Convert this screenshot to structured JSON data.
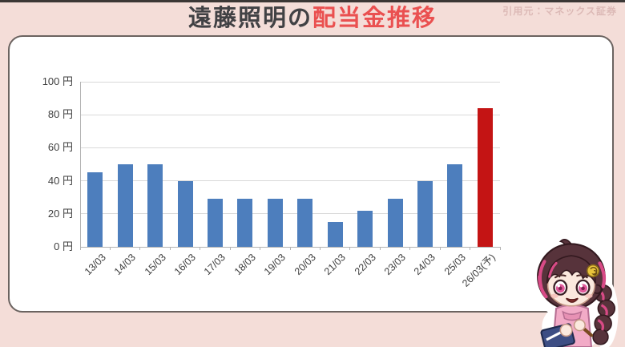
{
  "header": {
    "title_plain": "遠藤照明の",
    "title_accent": "配当金推移",
    "source": "引用元：マネックス証券"
  },
  "colors": {
    "background": "#f4ddd8",
    "title_dark": "#414144",
    "title_accent_red": "#ea5050",
    "source_text": "#dcb9b6",
    "card_border": "#6b6360",
    "grid": "#d9d9d9",
    "axis": "#b3b3b3",
    "tick_text": "#3f3f3f"
  },
  "chart_data": {
    "type": "bar",
    "title": "遠藤照明の配当金推移",
    "unit": "円",
    "categories": [
      "13/03",
      "14/03",
      "15/03",
      "16/03",
      "17/03",
      "18/03",
      "19/03",
      "20/03",
      "21/03",
      "22/03",
      "23/03",
      "24/03",
      "25/03",
      "26/03(予)"
    ],
    "values": [
      45,
      50,
      50,
      40,
      29,
      29,
      29,
      29,
      15,
      22,
      29,
      40,
      50,
      84
    ],
    "highlight_index": 13,
    "bar_color": "#4d7ebd",
    "highlight_color": "#c41414",
    "y_ticks": [
      0,
      20,
      40,
      60,
      80,
      100
    ],
    "y_tick_labels": [
      "0 円",
      "20 円",
      "40 円",
      "60 円",
      "80 円",
      "100 円"
    ],
    "ylim": [
      0,
      100
    ],
    "grid": true,
    "legend": null
  },
  "mascot": {
    "name": "chibi-girl-mascot"
  }
}
